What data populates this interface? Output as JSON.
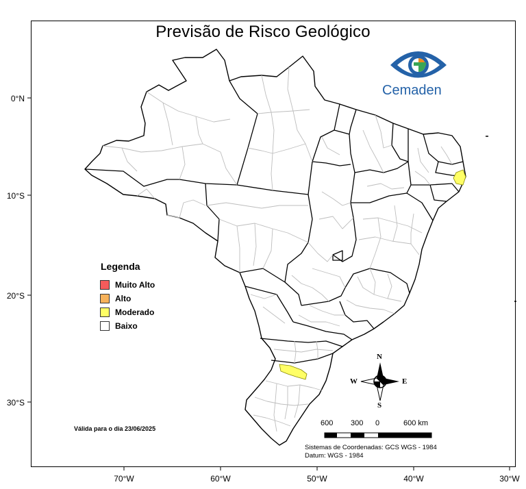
{
  "title": "Previsão de Risco Geológico",
  "logo": {
    "text": "Cemaden",
    "color_outer": "#2462a8",
    "color_inner_orange": "#f08a1c",
    "color_inner_green": "#3aa655"
  },
  "axes": {
    "latitude_ticks": [
      "0°N",
      "10°S",
      "20°S",
      "30°S"
    ],
    "longitude_ticks": [
      "70°W",
      "60°W",
      "50°W",
      "40°W",
      "30°W"
    ]
  },
  "legend": {
    "title": "Legenda",
    "items": [
      {
        "label": "Muito Alto",
        "color": "#f45b5b"
      },
      {
        "label": "Alto",
        "color": "#f7b25a"
      },
      {
        "label": "Moderado",
        "color": "#ffff66"
      },
      {
        "label": "Baixo",
        "color": "#ffffff"
      }
    ]
  },
  "validity": "Válida para o dia 23/06/2025",
  "compass": {
    "north": "N",
    "south": "S",
    "east": "E",
    "west": "W"
  },
  "scale_bar": {
    "labels": [
      "600",
      "300",
      "0",
      "600 km"
    ]
  },
  "coordinate_system": {
    "line1": "Sistemas de Coordenadas: GCS WGS - 1984",
    "line2": "Datum: WGS - 1984"
  },
  "highlighted_regions": [
    {
      "name": "moderate-risk-northeast",
      "level": "Moderado"
    },
    {
      "name": "moderate-risk-south",
      "level": "Moderado"
    }
  ]
}
